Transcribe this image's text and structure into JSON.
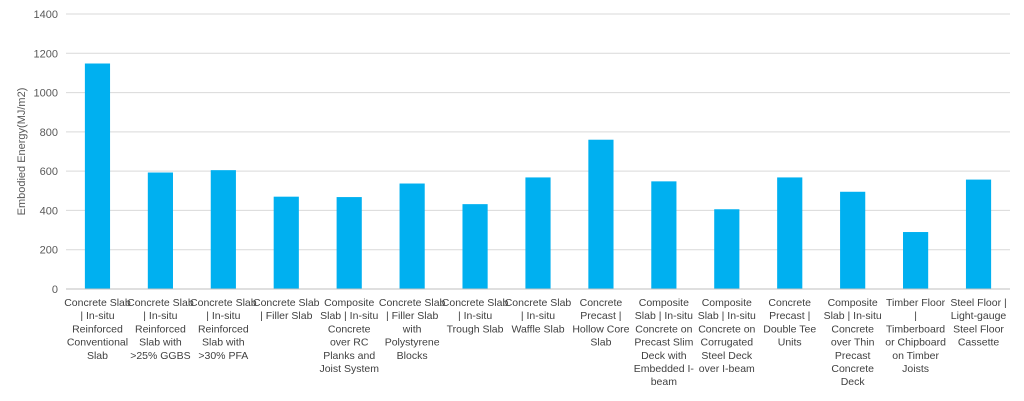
{
  "chart_data": {
    "type": "bar",
    "title": "",
    "xlabel": "",
    "ylabel": "Embodied Energy(MJ/m2)",
    "ylim": [
      0,
      1400
    ],
    "yticks": [
      0,
      200,
      400,
      600,
      800,
      1000,
      1200,
      1400
    ],
    "grid": true,
    "bar_color": "#00b0f0",
    "categories": [
      [
        "Concrete Slab",
        "| In-situ",
        "Reinforced",
        "Conventional",
        "Slab"
      ],
      [
        "Concrete Slab",
        "| In-situ",
        "Reinforced",
        "Slab with",
        ">25% GGBS"
      ],
      [
        "Concrete Slab",
        "| In-situ",
        "Reinforced",
        "Slab with",
        ">30% PFA"
      ],
      [
        "Concrete Slab",
        "| Filler Slab"
      ],
      [
        "Composite",
        "Slab | In-situ",
        "Concrete",
        "over RC",
        "Planks and",
        "Joist System"
      ],
      [
        "Concrete Slab",
        "| Filler Slab",
        "with",
        "Polystyrene",
        "Blocks"
      ],
      [
        "Concrete Slab",
        "| In-situ",
        "Trough Slab"
      ],
      [
        "Concrete Slab",
        "| In-situ",
        "Waffle Slab"
      ],
      [
        "Concrete",
        "Precast |",
        "Hollow Core",
        "Slab"
      ],
      [
        "Composite",
        "Slab | In-situ",
        "Concrete on",
        "Precast Slim",
        "Deck with",
        "Embedded I-",
        "beam"
      ],
      [
        "Composite",
        "Slab | In-situ",
        "Concrete on",
        "Corrugated",
        "Steel Deck",
        "over I-beam"
      ],
      [
        "Concrete",
        "Precast |",
        "Double Tee",
        "Units"
      ],
      [
        "Composite",
        "Slab | In-situ",
        "Concrete",
        "over Thin",
        "Precast",
        "Concrete",
        "Deck"
      ],
      [
        "Timber Floor",
        "|",
        "Timberboard",
        "or Chipboard",
        "on Timber",
        "Joists"
      ],
      [
        "Steel Floor |",
        "Light-gauge",
        "Steel Floor",
        "Cassette"
      ]
    ],
    "values": [
      1148,
      593,
      605,
      470,
      468,
      537,
      432,
      568,
      760,
      548,
      406,
      568,
      495,
      290,
      557
    ]
  }
}
